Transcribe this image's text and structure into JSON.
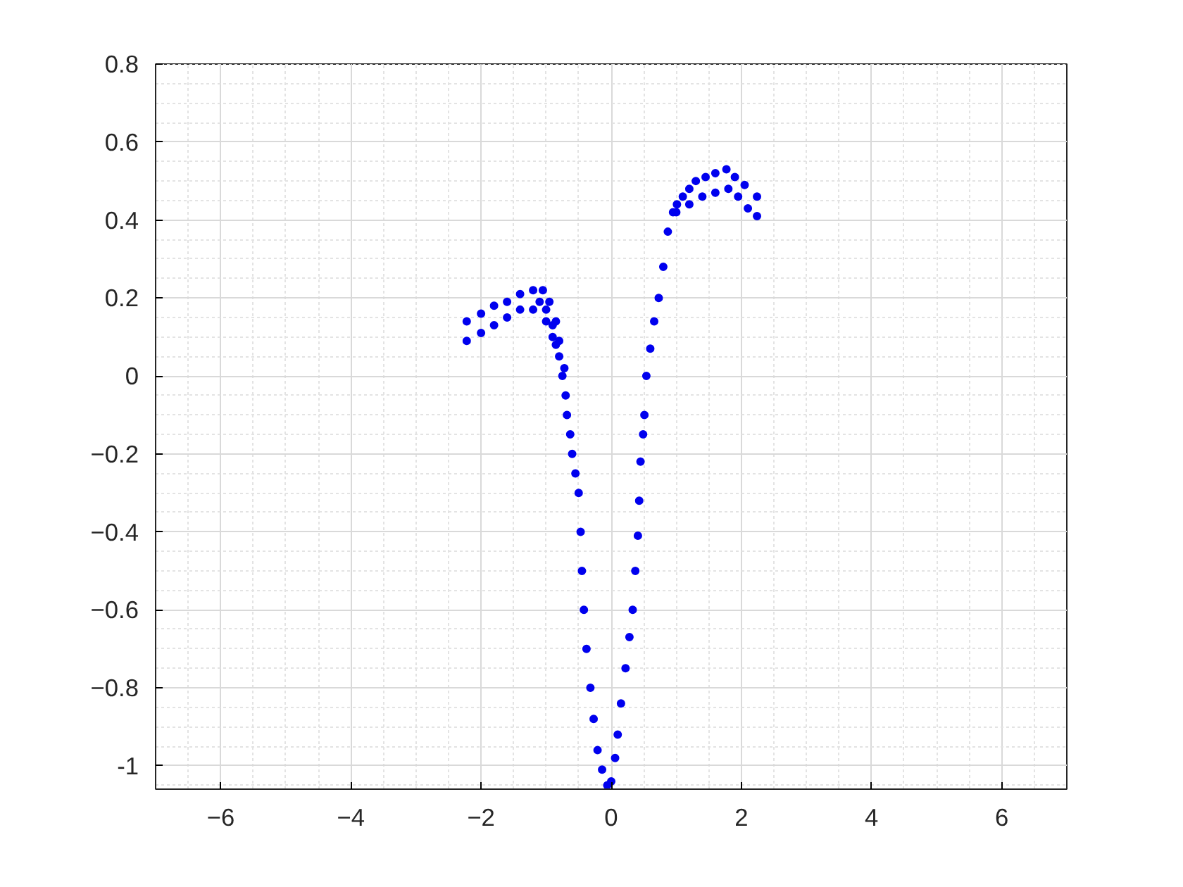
{
  "chart_data": {
    "type": "scatter",
    "xlim": [
      -7,
      7
    ],
    "ylim": [
      -1.06,
      0.8
    ],
    "xticks": [
      -6,
      -4,
      -2,
      0,
      2,
      4,
      6
    ],
    "yticks": [
      {
        "value": -1,
        "label": "-1"
      },
      -0.8,
      -0.6,
      -0.4,
      -0.2,
      0,
      0.2,
      0.4,
      0.6,
      0.8
    ],
    "grid": true,
    "marker": "circle",
    "series": [
      {
        "color": "#0000ee",
        "x": [
          -2.22,
          -2.0,
          -1.8,
          -1.6,
          -1.4,
          -1.2,
          -1.0,
          -0.9,
          -0.8,
          -0.75,
          -0.7,
          -2.22,
          -2.0,
          -1.8,
          -1.6,
          -1.4,
          -1.2,
          -1.05,
          -0.95,
          -0.85,
          -0.8,
          -0.72,
          -1.1,
          -1.0,
          -0.9,
          -0.85,
          -0.68,
          -0.63,
          -0.6,
          -0.55,
          -0.5,
          -0.47,
          -0.45,
          -0.42,
          -0.38,
          -0.32,
          -0.27,
          -0.21,
          -0.14,
          -0.06,
          0.0,
          0.06,
          0.1,
          0.15,
          0.22,
          0.28,
          0.33,
          0.37,
          0.41,
          0.43,
          0.45,
          0.49,
          0.51,
          0.54,
          0.6,
          0.66,
          0.73,
          0.8,
          0.87,
          0.95,
          1.01,
          1.1,
          1.2,
          1.3,
          1.45,
          1.6,
          1.77,
          1.9,
          2.05,
          2.24,
          1.0,
          1.2,
          1.4,
          1.6,
          1.8,
          1.95,
          2.1,
          2.24
        ],
        "values": [
          0.09,
          0.11,
          0.13,
          0.15,
          0.17,
          0.17,
          0.14,
          0.1,
          0.05,
          0.0,
          -0.05,
          0.14,
          0.16,
          0.18,
          0.19,
          0.21,
          0.22,
          0.22,
          0.19,
          0.14,
          0.09,
          0.02,
          0.19,
          0.17,
          0.13,
          0.08,
          -0.1,
          -0.15,
          -0.2,
          -0.25,
          -0.3,
          -0.4,
          -0.5,
          -0.6,
          -0.7,
          -0.8,
          -0.88,
          -0.96,
          -1.01,
          -1.05,
          -1.04,
          -0.98,
          -0.92,
          -0.84,
          -0.75,
          -0.67,
          -0.6,
          -0.5,
          -0.41,
          -0.32,
          -0.22,
          -0.15,
          -0.1,
          0.0,
          0.07,
          0.14,
          0.2,
          0.28,
          0.37,
          0.42,
          0.44,
          0.46,
          0.48,
          0.5,
          0.51,
          0.52,
          0.53,
          0.51,
          0.49,
          0.46,
          0.42,
          0.44,
          0.46,
          0.47,
          0.48,
          0.46,
          0.43,
          0.41
        ]
      }
    ]
  }
}
